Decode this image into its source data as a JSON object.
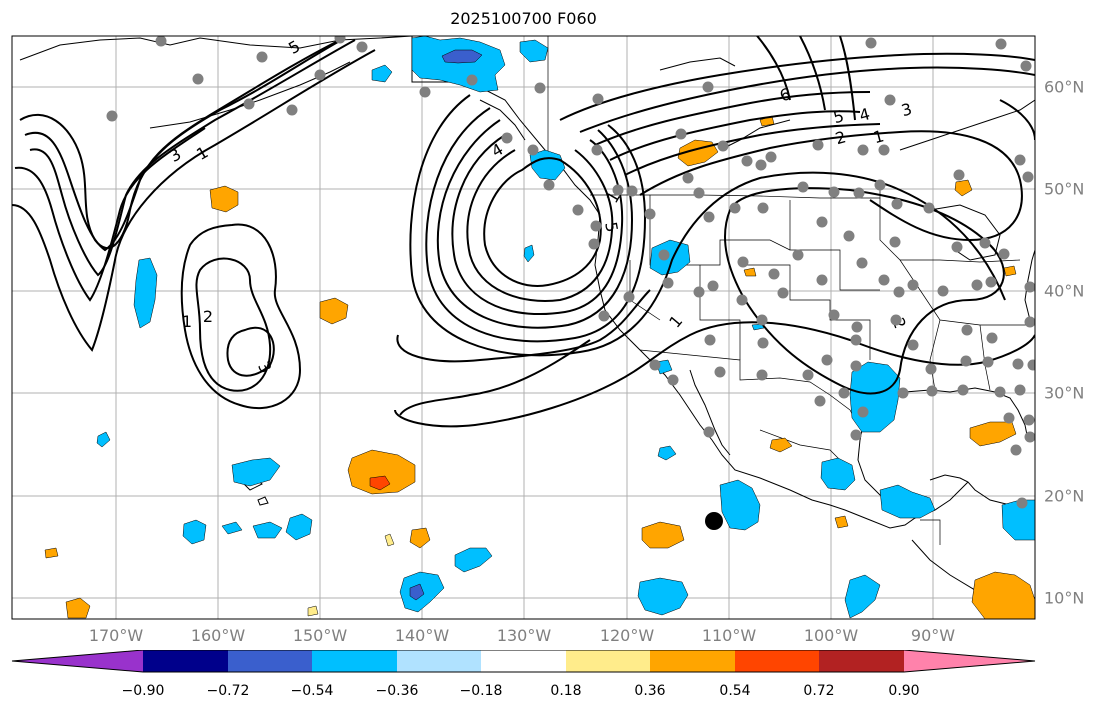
{
  "title": "2025100700 F060",
  "lon_labels": [
    "170°W",
    "160°W",
    "150°W",
    "140°W",
    "130°W",
    "120°W",
    "110°W",
    "100°W",
    "90°W"
  ],
  "lat_labels": [
    "60°N",
    "50°N",
    "40°N",
    "30°N",
    "20°N",
    "10°N"
  ],
  "colorbar": {
    "tick_labels": [
      "−0.90",
      "−0.72",
      "−0.54",
      "−0.36",
      "−0.18",
      "0.18",
      "0.36",
      "0.54",
      "0.72",
      "0.90"
    ],
    "colors": [
      "#9932cc",
      "#00008b",
      "#3a5fcd",
      "#00bfff",
      "#b0e2ff",
      "#ffffff",
      "#ffec8b",
      "#ffa500",
      "#ff4500",
      "#b22222",
      "#ff82ab"
    ]
  },
  "contour_labels": [
    "5",
    "1",
    "3",
    "2",
    "1",
    "5",
    "6",
    "5",
    "4",
    "3",
    "2",
    "1",
    "3",
    "2",
    "1",
    "4",
    "1"
  ],
  "map": {
    "lon_range": [
      -180,
      -80
    ],
    "lat_range": [
      8,
      65
    ],
    "fill_colors": {
      "blue": "#00bfff",
      "dark_blue": "#3a5fcd",
      "orange": "#ffa500",
      "red": "#ff4500"
    },
    "station_color": "#808080",
    "marker_color": "#000000"
  }
}
